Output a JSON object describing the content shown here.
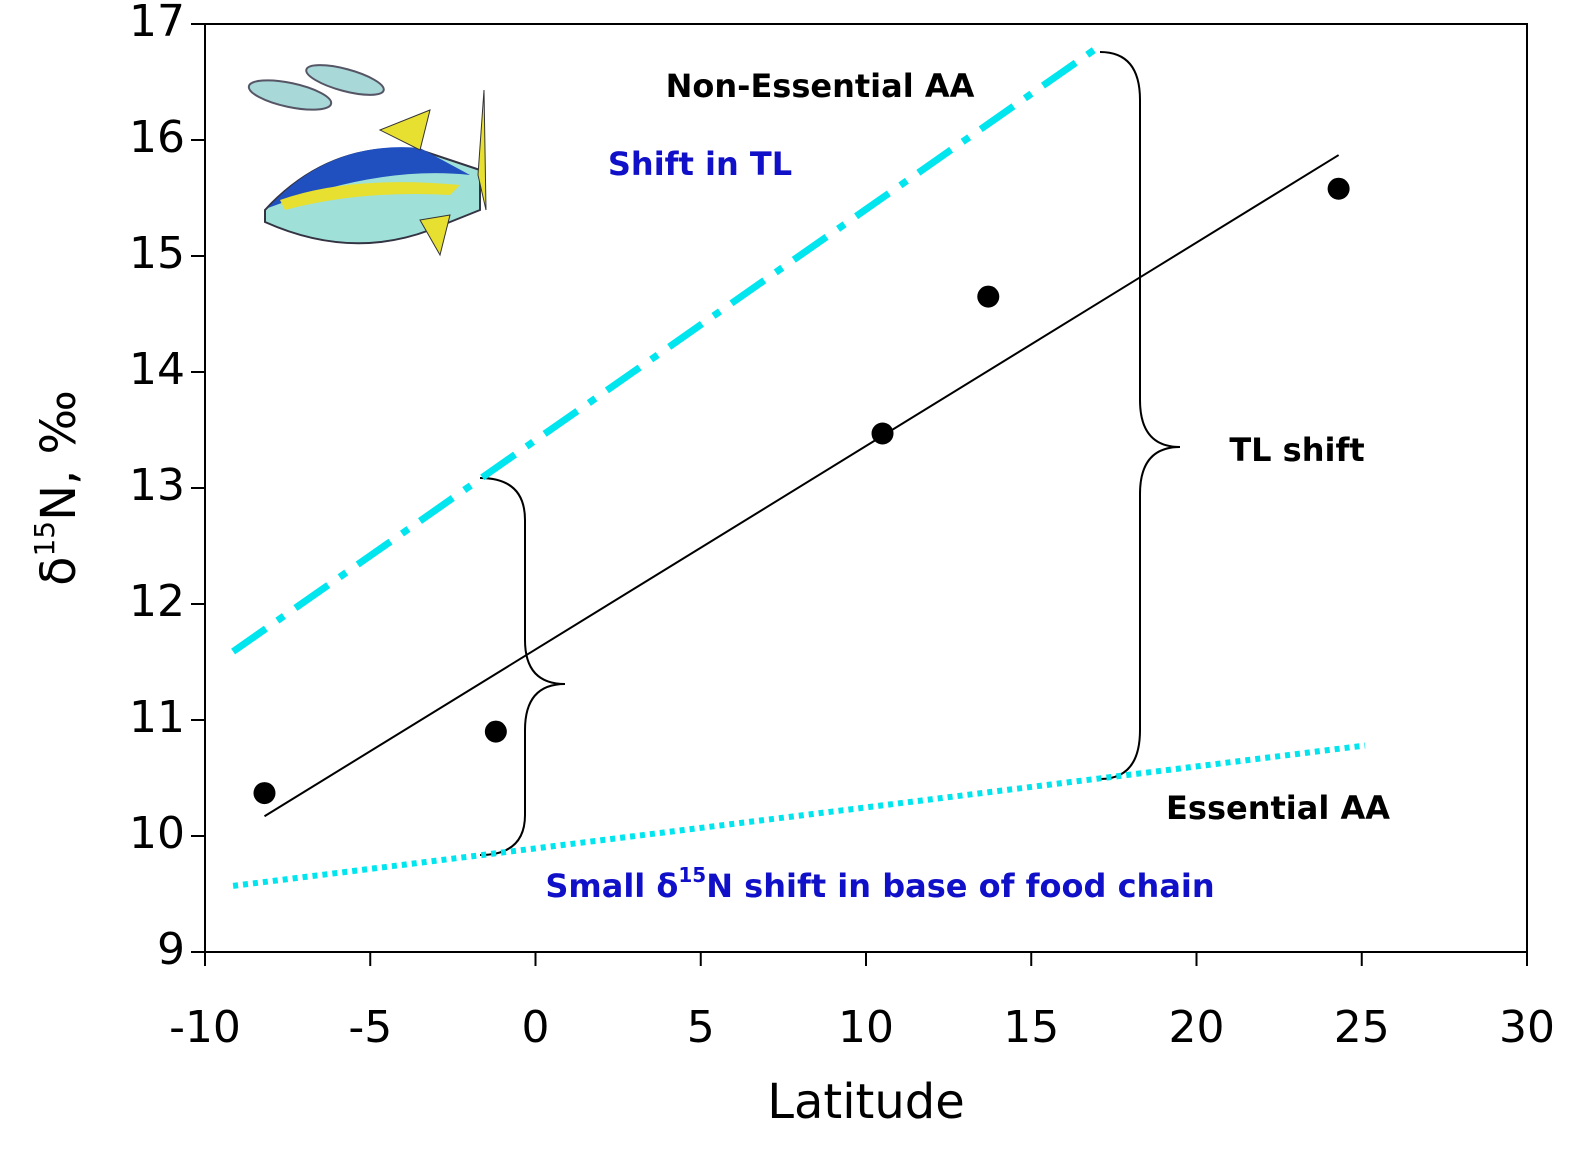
{
  "chart_data": {
    "type": "scatter",
    "xlabel": "Latitude",
    "ylabel": [
      "δ",
      "15",
      "N, ‰"
    ],
    "xlim": [
      -10,
      30
    ],
    "xticks": [
      -10,
      -5,
      0,
      5,
      10,
      15,
      20,
      25,
      30
    ],
    "ylim": [
      9,
      17
    ],
    "yticks": [
      9,
      10,
      11,
      12,
      13,
      14,
      15,
      16,
      17
    ],
    "points": {
      "x": [
        -8.2,
        -1.2,
        10.5,
        13.7,
        24.3
      ],
      "y": [
        10.37,
        10.9,
        13.47,
        14.65,
        15.58
      ],
      "color": "#000000"
    },
    "lines": [
      {
        "x": [
          -8.2,
          24.3
        ],
        "y": [
          10.17,
          15.87
        ],
        "color": "#000000",
        "style": "solid"
      },
      {
        "x": [
          -9.15,
          17.17
        ],
        "y": [
          11.59,
          16.83
        ],
        "color": "#00e5ee",
        "style": "dashdot"
      },
      {
        "x": [
          -9.15,
          25.1
        ],
        "y": [
          9.57,
          10.78
        ],
        "color": "#00e5ee",
        "style": "dotted"
      }
    ],
    "annotations": [
      {
        "text": [
          "Non-Essential AA"
        ],
        "color": "#000000"
      },
      {
        "text": [
          "Shift in TL"
        ],
        "color": "#1010c8"
      },
      {
        "text": [
          "TL shift"
        ],
        "color": "#000000"
      },
      {
        "text": [
          "Essential AA"
        ],
        "color": "#000000"
      },
      {
        "text": [
          "Small δ",
          "15",
          "N shift in base of food chain"
        ],
        "color": "#1010c8"
      }
    ]
  }
}
